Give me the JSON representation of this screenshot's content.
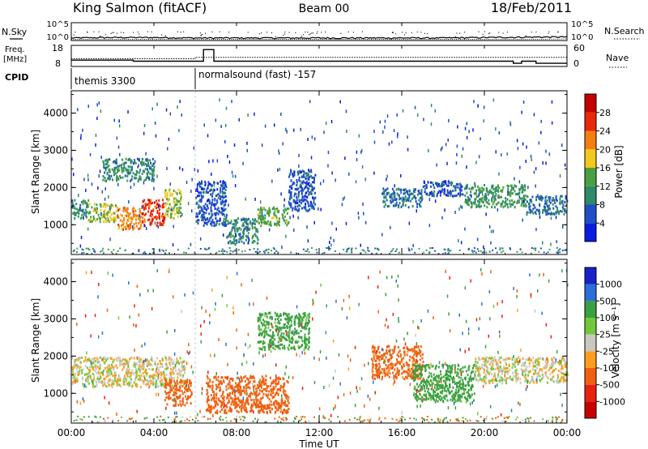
{
  "header": {
    "station": "King Salmon (fitACF)",
    "beam": "Beam 00",
    "date": "18/Feb/2011"
  },
  "side_labels": {
    "nsky": "N.Sky",
    "nsearch": "N.Search",
    "freq_line1": "Freq.",
    "freq_line2": "[MHz]",
    "nave": "Nave",
    "cpid": "CPID"
  },
  "noise_axis": {
    "left_top": "10^5",
    "left_bottom": "10^0",
    "right_top": "10^5",
    "right_bottom": "10^0"
  },
  "freq_axis": {
    "left_top": "18",
    "left_bottom": "8",
    "right_top": "60",
    "right_bottom": "0"
  },
  "cpid_segments": [
    {
      "start_hour": 0.0,
      "label": "themis 3300"
    },
    {
      "start_hour": 6.0,
      "label": "normalsound (fast) -157"
    }
  ],
  "time_axis": {
    "label": "Time UT",
    "ticks": [
      "00:00",
      "04:00",
      "08:00",
      "12:00",
      "16:00",
      "20:00",
      "00:00"
    ],
    "tick_hours": [
      0,
      4,
      8,
      12,
      16,
      20,
      24
    ]
  },
  "range_axis": {
    "label": "Slant Range [km]",
    "ticks": [
      "1000",
      "2000",
      "3000",
      "4000"
    ],
    "tick_values": [
      1000,
      2000,
      3000,
      4000
    ],
    "range": [
      200,
      4600
    ]
  },
  "power_scale": {
    "label": "Power [dB]",
    "ticks": [
      "4",
      "8",
      "12",
      "16",
      "20",
      "24",
      "28"
    ],
    "colors": [
      "#0a1ce0",
      "#1e4fc4",
      "#2e8a6a",
      "#4aa040",
      "#f2c81e",
      "#f27f10",
      "#e8280a",
      "#c40000"
    ]
  },
  "velocity_scale": {
    "label": "Velocity [m s⁻¹]",
    "ticks": [
      "1000",
      "500",
      "100",
      "25",
      "-25",
      "-100",
      "-500",
      "-1000"
    ],
    "colors": [
      "#1a20c8",
      "#2b6fd8",
      "#3aa040",
      "#72c83a",
      "#c8c8c0",
      "#ff9e1e",
      "#f06010",
      "#e82010",
      "#c80000"
    ]
  },
  "chart_data": [
    {
      "type": "line",
      "title": "N.Sky / N.Search noise",
      "x_unit": "hour UT",
      "xlim": [
        0,
        24
      ],
      "y_scale": "log",
      "series": [
        {
          "name": "N.Sky",
          "x": [
            0,
            2,
            4,
            6,
            8,
            10,
            12,
            14,
            16,
            18,
            20,
            22,
            24
          ],
          "values": [
            3,
            4,
            4,
            3,
            3,
            3,
            3,
            3,
            3,
            3,
            4,
            5,
            6
          ]
        },
        {
          "name": "N.Search",
          "x": [
            0,
            2,
            4,
            6,
            8,
            10,
            12,
            14,
            16,
            18,
            20,
            22,
            24
          ],
          "values": [
            2,
            2,
            2,
            2,
            2,
            2,
            2,
            2,
            2,
            2,
            2,
            2,
            3
          ]
        }
      ]
    },
    {
      "type": "line",
      "title": "Freq / Nave",
      "x_unit": "hour UT",
      "xlim": [
        0,
        24
      ],
      "series": [
        {
          "name": "Freq. [MHz]",
          "x": [
            0,
            3,
            3,
            6.4,
            6.4,
            6.9,
            6.9,
            21.4,
            21.4,
            21.8,
            21.8,
            22.5,
            22.5,
            24
          ],
          "values": [
            11,
            11,
            10.5,
            10.5,
            16,
            16,
            10.5,
            10.5,
            9.5,
            9.5,
            10.5,
            10.5,
            9.5,
            9.5
          ]
        },
        {
          "name": "Nave",
          "x": [
            0,
            6,
            6,
            24
          ],
          "values": [
            22,
            22,
            26,
            26
          ]
        }
      ]
    },
    {
      "type": "heatmap",
      "title": "Power [dB]",
      "x_unit": "hour UT",
      "y_unit": "km",
      "xlim": [
        0,
        24
      ],
      "ylim": [
        200,
        4600
      ],
      "regions": [
        {
          "x": [
            0,
            0.8
          ],
          "y": [
            1200,
            1700
          ],
          "value": 10
        },
        {
          "x": [
            0.8,
            2.2
          ],
          "y": [
            1100,
            1600
          ],
          "value": 16
        },
        {
          "x": [
            2.2,
            3.4
          ],
          "y": [
            900,
            1500
          ],
          "value": 22
        },
        {
          "x": [
            3.4,
            4.5
          ],
          "y": [
            1000,
            1700
          ],
          "value": 26
        },
        {
          "x": [
            4.5,
            5.3
          ],
          "y": [
            1200,
            2000
          ],
          "value": 16
        },
        {
          "x": [
            1.5,
            4.0
          ],
          "y": [
            2200,
            2800
          ],
          "value": 10
        },
        {
          "x": [
            6.0,
            7.5
          ],
          "y": [
            1000,
            2200
          ],
          "value": 6
        },
        {
          "x": [
            7.5,
            9.0
          ],
          "y": [
            500,
            1200
          ],
          "value": 10
        },
        {
          "x": [
            9.0,
            10.5
          ],
          "y": [
            1000,
            1500
          ],
          "value": 14
        },
        {
          "x": [
            10.5,
            11.8
          ],
          "y": [
            1400,
            2500
          ],
          "value": 6
        },
        {
          "x": [
            15.0,
            17.0
          ],
          "y": [
            1500,
            2000
          ],
          "value": 8
        },
        {
          "x": [
            17.0,
            19.0
          ],
          "y": [
            1800,
            2200
          ],
          "value": 6
        },
        {
          "x": [
            19.0,
            22.0
          ],
          "y": [
            1500,
            2100
          ],
          "value": 12
        },
        {
          "x": [
            22.0,
            24.0
          ],
          "y": [
            1300,
            1800
          ],
          "value": 8
        }
      ]
    },
    {
      "type": "heatmap",
      "title": "Velocity [m s⁻¹]",
      "x_unit": "hour UT",
      "y_unit": "km",
      "xlim": [
        0,
        24
      ],
      "ylim": [
        200,
        4600
      ],
      "regions": [
        {
          "x": [
            0,
            5.5
          ],
          "y": [
            1200,
            2000
          ],
          "value": 0
        },
        {
          "x": [
            4.5,
            5.8
          ],
          "y": [
            700,
            1400
          ],
          "value": -200
        },
        {
          "x": [
            6.5,
            10.5
          ],
          "y": [
            500,
            1500
          ],
          "value": -300
        },
        {
          "x": [
            9.0,
            11.5
          ],
          "y": [
            2200,
            3200
          ],
          "value": 150
        },
        {
          "x": [
            14.5,
            17.0
          ],
          "y": [
            1400,
            2300
          ],
          "value": -150
        },
        {
          "x": [
            16.5,
            19.5
          ],
          "y": [
            800,
            1800
          ],
          "value": 150
        },
        {
          "x": [
            19.5,
            24.0
          ],
          "y": [
            1300,
            2000
          ],
          "value": 0
        }
      ]
    }
  ]
}
